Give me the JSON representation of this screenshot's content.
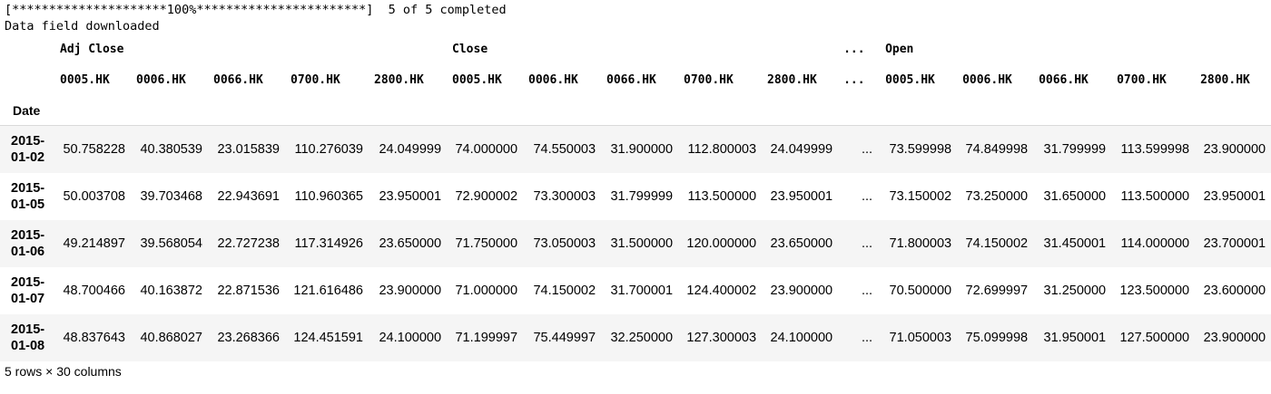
{
  "stdout": {
    "progress_line": "[*********************100%***********************]  5 of 5 completed",
    "message_line": "Data field downloaded"
  },
  "dataframe": {
    "column_groups": [
      {
        "label": "Adj Close",
        "tickers": [
          "0005.HK",
          "0006.HK",
          "0066.HK",
          "0700.HK",
          "2800.HK"
        ]
      },
      {
        "label": "Close",
        "tickers": [
          "0005.HK",
          "0006.HK",
          "0066.HK",
          "0700.HK",
          "2800.HK"
        ]
      },
      {
        "label": "Open",
        "tickers": [
          "0005.HK",
          "0006.HK",
          "0066.HK",
          "0700.HK",
          "2800.HK"
        ]
      }
    ],
    "ellipsis": "...",
    "index_name": "Date",
    "rows": [
      {
        "date": "2015-01-02",
        "adj_close": [
          "50.758228",
          "40.380539",
          "23.015839",
          "110.276039",
          "24.049999"
        ],
        "close": [
          "74.000000",
          "74.550003",
          "31.900000",
          "112.800003",
          "24.049999"
        ],
        "open": [
          "73.599998",
          "74.849998",
          "31.799999",
          "113.599998",
          "23.900000"
        ]
      },
      {
        "date": "2015-01-05",
        "adj_close": [
          "50.003708",
          "39.703468",
          "22.943691",
          "110.960365",
          "23.950001"
        ],
        "close": [
          "72.900002",
          "73.300003",
          "31.799999",
          "113.500000",
          "23.950001"
        ],
        "open": [
          "73.150002",
          "73.250000",
          "31.650000",
          "113.500000",
          "23.950001"
        ]
      },
      {
        "date": "2015-01-06",
        "adj_close": [
          "49.214897",
          "39.568054",
          "22.727238",
          "117.314926",
          "23.650000"
        ],
        "close": [
          "71.750000",
          "73.050003",
          "31.500000",
          "120.000000",
          "23.650000"
        ],
        "open": [
          "71.800003",
          "74.150002",
          "31.450001",
          "114.000000",
          "23.700001"
        ]
      },
      {
        "date": "2015-01-07",
        "adj_close": [
          "48.700466",
          "40.163872",
          "22.871536",
          "121.616486",
          "23.900000"
        ],
        "close": [
          "71.000000",
          "74.150002",
          "31.700001",
          "124.400002",
          "23.900000"
        ],
        "open": [
          "70.500000",
          "72.699997",
          "31.250000",
          "123.500000",
          "23.600000"
        ]
      },
      {
        "date": "2015-01-08",
        "adj_close": [
          "48.837643",
          "40.868027",
          "23.268366",
          "124.451591",
          "24.100000"
        ],
        "close": [
          "71.199997",
          "75.449997",
          "32.250000",
          "127.300003",
          "24.100000"
        ],
        "open": [
          "71.050003",
          "75.099998",
          "31.950001",
          "127.500000",
          "23.900000"
        ]
      }
    ],
    "shape_text": "5 rows × 30 columns"
  }
}
